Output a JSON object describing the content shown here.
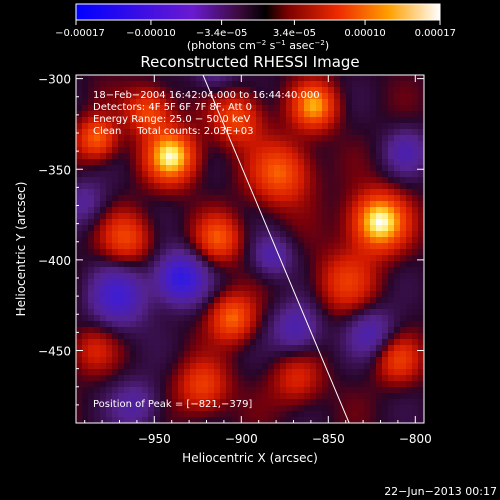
{
  "chart_data": {
    "type": "heatmap",
    "title": "Reconstructed RHESSI Image",
    "xlabel": "Heliocentric X (arcsec)",
    "ylabel": "Heliocentric Y (arcsec)",
    "xlim": [
      -995,
      -795
    ],
    "ylim": [
      -490,
      -298
    ],
    "x_ticks": [
      -950,
      -900,
      -850,
      -800
    ],
    "x_tick_labels": [
      "−950",
      "−900",
      "−850",
      "−800"
    ],
    "y_ticks": [
      -300,
      -350,
      -400,
      -450
    ],
    "y_tick_labels": [
      "−300",
      "−350",
      "−400",
      "−450"
    ],
    "colorbar": {
      "range": [
        -0.00017,
        0.00017
      ],
      "ticks": [
        -0.00017,
        -0.0001,
        -3.4e-05,
        3.4e-05,
        0.0001,
        0.00017
      ],
      "tick_labels": [
        "−0.00017",
        "−0.00010",
        "−3.4e−05",
        "3.4e−05",
        "0.00010",
        "0.00017"
      ],
      "unit_prefix": "(photons cm",
      "unit_exp1": "−2",
      "unit_mid": " s",
      "unit_exp2": "−1",
      "unit_mid2": " asec",
      "unit_exp3": "−2",
      "unit_suffix": ")"
    },
    "annotations": {
      "line1": "18−Feb−2004 16:42:04.000 to 16:44:40.000",
      "line2": "Detectors: 4F 5F 6F 7F 8F, Att 0",
      "line3": "Energy Range: 25.0 − 50.0 keV",
      "line4": "Clean     Total counts: 2.03E+03",
      "peak": "Position of Peak = [−821,−379]"
    },
    "peak_position": [
      -821,
      -379
    ],
    "limb_line": {
      "x": [
        -922,
        -838
      ],
      "y": [
        -298,
        -490
      ]
    },
    "blobs": [
      {
        "x": -821,
        "y": -379,
        "amp": 1.0,
        "s": 11
      },
      {
        "x": -940,
        "y": -343,
        "amp": 0.92,
        "s": 10
      },
      {
        "x": -858,
        "y": -315,
        "amp": 0.72,
        "s": 9
      },
      {
        "x": -877,
        "y": -352,
        "amp": 0.6,
        "s": 12
      },
      {
        "x": -902,
        "y": -322,
        "amp": 0.52,
        "s": 10
      },
      {
        "x": -983,
        "y": -333,
        "amp": 0.62,
        "s": 8
      },
      {
        "x": -953,
        "y": -318,
        "amp": 0.55,
        "s": 9
      },
      {
        "x": -966,
        "y": -388,
        "amp": 0.5,
        "s": 10
      },
      {
        "x": -913,
        "y": -388,
        "amp": 0.55,
        "s": 9
      },
      {
        "x": -905,
        "y": -432,
        "amp": 0.62,
        "s": 9
      },
      {
        "x": -922,
        "y": -470,
        "amp": 0.5,
        "s": 10
      },
      {
        "x": -840,
        "y": -412,
        "amp": 0.42,
        "s": 12
      },
      {
        "x": -810,
        "y": -455,
        "amp": 0.45,
        "s": 9
      },
      {
        "x": -868,
        "y": -466,
        "amp": 0.35,
        "s": 10
      },
      {
        "x": -985,
        "y": -450,
        "amp": 0.3,
        "s": 9
      },
      {
        "x": -970,
        "y": -420,
        "amp": -0.55,
        "s": 12
      },
      {
        "x": -935,
        "y": -410,
        "amp": -0.75,
        "s": 10
      },
      {
        "x": -882,
        "y": -398,
        "amp": -0.4,
        "s": 8
      },
      {
        "x": -868,
        "y": -438,
        "amp": -0.45,
        "s": 10
      },
      {
        "x": -825,
        "y": -440,
        "amp": -0.4,
        "s": 10
      },
      {
        "x": -805,
        "y": -340,
        "amp": -0.35,
        "s": 9
      },
      {
        "x": -960,
        "y": -480,
        "amp": -0.35,
        "s": 10
      },
      {
        "x": -990,
        "y": -368,
        "amp": -0.3,
        "s": 9
      },
      {
        "x": -915,
        "y": -295,
        "amp": -0.3,
        "s": 9
      }
    ]
  },
  "timestamp": "22−Jun−2013 00:17"
}
